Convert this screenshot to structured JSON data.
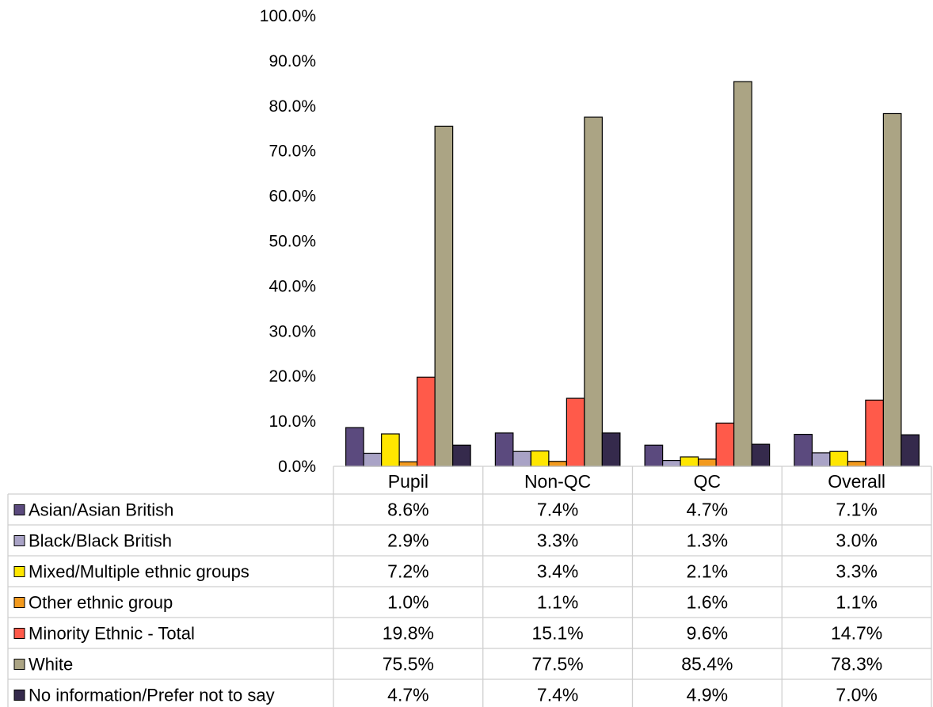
{
  "chart_data": {
    "type": "bar",
    "title": "",
    "xlabel": "",
    "ylabel": "",
    "ylim": [
      0,
      100
    ],
    "yticks": [
      "0.0%",
      "10.0%",
      "20.0%",
      "30.0%",
      "40.0%",
      "50.0%",
      "60.0%",
      "70.0%",
      "80.0%",
      "90.0%",
      "100.0%"
    ],
    "categories": [
      "Pupil",
      "Non-QC",
      "QC",
      "Overall"
    ],
    "series": [
      {
        "name": "Asian/Asian British",
        "color": "#5b4a7e",
        "values": [
          8.6,
          7.4,
          4.7,
          7.1
        ],
        "labels": [
          "8.6%",
          "7.4%",
          "4.7%",
          "7.1%"
        ]
      },
      {
        "name": "Black/Black British",
        "color": "#a9a3c6",
        "values": [
          2.9,
          3.3,
          1.3,
          3.0
        ],
        "labels": [
          "2.9%",
          "3.3%",
          "1.3%",
          "3.0%"
        ]
      },
      {
        "name": "Mixed/Multiple ethnic groups",
        "color": "#ffe600",
        "values": [
          7.2,
          3.4,
          2.1,
          3.3
        ],
        "labels": [
          "7.2%",
          "3.4%",
          "2.1%",
          "3.3%"
        ]
      },
      {
        "name": "Other ethnic group",
        "color": "#f39a1e",
        "values": [
          1.0,
          1.1,
          1.6,
          1.1
        ],
        "labels": [
          "1.0%",
          "1.1%",
          "1.6%",
          "1.1%"
        ]
      },
      {
        "name": "Minority Ethnic - Total",
        "color": "#ff5a4a",
        "values": [
          19.8,
          15.1,
          9.6,
          14.7
        ],
        "labels": [
          "19.8%",
          "15.1%",
          "9.6%",
          "14.7%"
        ]
      },
      {
        "name": "White",
        "color": "#aba484",
        "values": [
          75.5,
          77.5,
          85.4,
          78.3
        ],
        "labels": [
          "75.5%",
          "77.5%",
          "85.4%",
          "78.3%"
        ]
      },
      {
        "name": "No information/Prefer not to say",
        "color": "#352a4c",
        "values": [
          4.7,
          7.4,
          4.9,
          7.0
        ],
        "labels": [
          "4.7%",
          "7.4%",
          "4.9%",
          "7.0%"
        ]
      }
    ],
    "legend_position": "data-table-left",
    "grid": false
  }
}
